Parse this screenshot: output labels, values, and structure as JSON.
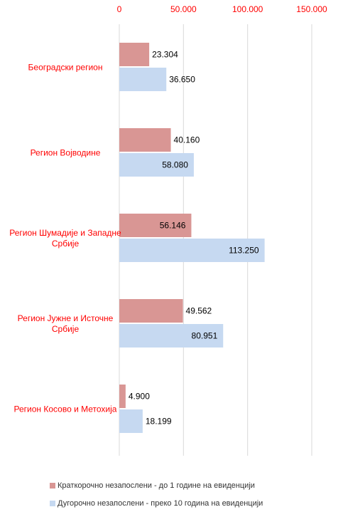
{
  "chart_data": {
    "type": "bar",
    "orientation": "horizontal",
    "categories": [
      "Београдски регион",
      "Регион Војводине",
      "Регион Шумадије и Западне Србије",
      "Регион Јужне и Источне Србије",
      "Регион Косово и Метохија"
    ],
    "series": [
      {
        "name": "Краткорочно незапослени - до 1 године на евиденцији",
        "color": "#d99694",
        "values": [
          23304,
          40160,
          56146,
          49562,
          4900
        ],
        "value_labels": [
          "23.304",
          "40.160",
          "56.146",
          "49.562",
          "4.900"
        ]
      },
      {
        "name": "Дугорочно незапослени - преко 10 година на евиденцији",
        "color": "#c6d9f1",
        "values": [
          36650,
          58080,
          113250,
          80951,
          18199
        ],
        "value_labels": [
          "36.650",
          "58.080",
          "113.250",
          "80.951",
          "18.199"
        ]
      }
    ],
    "xlim": [
      0,
      150000
    ],
    "xticks": [
      0,
      {
        "value": 50000,
        "label": "50.000"
      },
      {
        "value": 100000,
        "label": "100.000"
      },
      {
        "value": 150000,
        "label": "150.000"
      }
    ],
    "grid": true,
    "legend": "bottom"
  }
}
